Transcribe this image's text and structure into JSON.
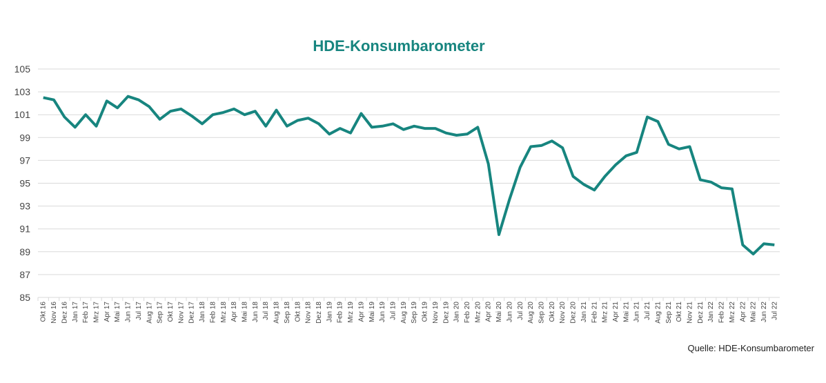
{
  "chart_data": {
    "type": "line",
    "title": "HDE-Konsumbarometer",
    "source": "Quelle: HDE-Konsumbarometer",
    "categories": [
      "Okt 16",
      "Nov 16",
      "Dez 16",
      "Jan 17",
      "Feb 17",
      "Mrz 17",
      "Apr 17",
      "Mai 17",
      "Jun 17",
      "Jul 17",
      "Aug 17",
      "Sep 17",
      "Okt 17",
      "Nov 17",
      "Dez 17",
      "Jan 18",
      "Feb 18",
      "Mrz 18",
      "Apr 18",
      "Mai 18",
      "Jun 18",
      "Jul 18",
      "Aug 18",
      "Sep 18",
      "Okt 18",
      "Nov 18",
      "Dez 18",
      "Jan 19",
      "Feb 19",
      "Mrz 19",
      "Apr 19",
      "Mai 19",
      "Jun 19",
      "Jul 19",
      "Aug 19",
      "Sep 19",
      "Okt 19",
      "Nov 19",
      "Dez 19",
      "Jan 20",
      "Feb 20",
      "Mrz 20",
      "Apr 20",
      "Mai 20",
      "Jun 20",
      "Jul 20",
      "Aug 20",
      "Sep 20",
      "Okt 20",
      "Nov 20",
      "Dez 20",
      "Jan 21",
      "Feb 21",
      "Mrz 21",
      "Apr 21",
      "Mai 21",
      "Jun 21",
      "Jul 21",
      "Aug 21",
      "Sep 21",
      "Okt 21",
      "Nov 21",
      "Dez 21",
      "Jan 22",
      "Feb 22",
      "Mrz 22",
      "Apr 22",
      "Mai 22",
      "Jun 22",
      "Jul 22"
    ],
    "values": [
      102.5,
      102.3,
      100.8,
      99.9,
      101.0,
      100.0,
      102.2,
      101.6,
      102.6,
      102.3,
      101.7,
      100.6,
      101.3,
      101.5,
      100.9,
      100.2,
      101.0,
      101.2,
      101.5,
      101.0,
      101.3,
      100.0,
      101.4,
      100.0,
      100.5,
      100.7,
      100.2,
      99.3,
      99.8,
      99.4,
      101.1,
      99.9,
      100.0,
      100.2,
      99.7,
      100.0,
      99.8,
      99.8,
      99.4,
      99.2,
      99.3,
      99.9,
      96.7,
      90.5,
      93.6,
      96.4,
      98.2,
      98.3,
      98.7,
      98.1,
      95.6,
      94.9,
      94.4,
      95.6,
      96.6,
      97.4,
      97.7,
      100.8,
      100.4,
      98.4,
      98.0,
      98.2,
      95.3,
      95.1,
      94.6,
      94.5,
      89.6,
      88.8,
      89.7,
      89.6
    ],
    "color": "#17857f",
    "ylim": [
      85,
      105
    ],
    "yticks": [
      85,
      87,
      89,
      91,
      93,
      95,
      97,
      99,
      101,
      103,
      105
    ],
    "grid": true
  }
}
